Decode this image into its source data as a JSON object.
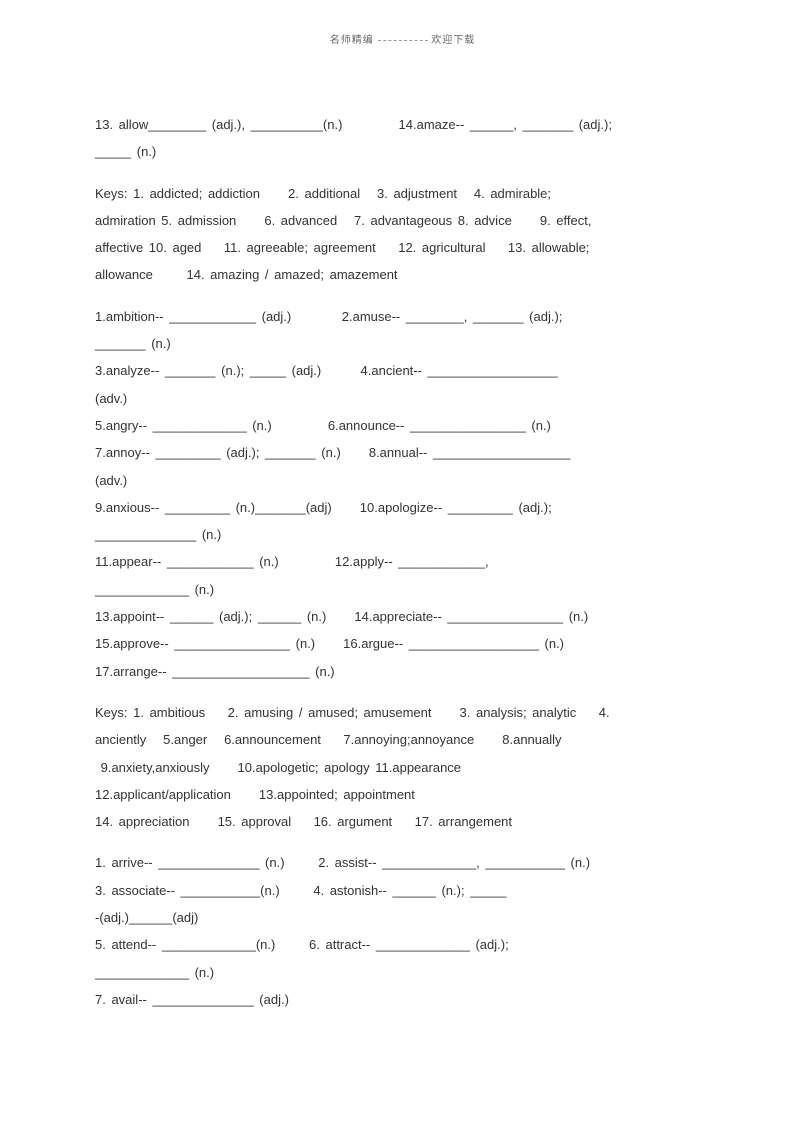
{
  "header": {
    "left": "名师精编",
    "right": "欢迎下载"
  },
  "lines": [
    "13. allow________ (adj.), __________(n.)          14.amaze-- ______, _______ (adj.);",
    "_____ (n.)",
    "",
    "Keys: 1. addicted; addiction     2. additional   3. adjustment   4. admirable;",
    "admiration 5. admission     6. advanced   7. advantageous 8. advice     9. effect,",
    "affective 10. aged    11. agreeable; agreement    12. agricultural    13. allowable;",
    "allowance      14. amazing / amazed; amazement",
    "",
    "1.ambition-- ____________ (adj.)         2.amuse-- ________, _______ (adj.);",
    "_______ (n.)",
    "3.analyze-- _______ (n.); _____ (adj.)       4.ancient-- __________________",
    "(adv.)",
    "5.angry-- _____________ (n.)          6.announce-- ________________ (n.)",
    "7.annoy-- _________ (adj.); _______ (n.)     8.annual-- ___________________",
    "(adv.)",
    "9.anxious-- _________ (n.)_______(adj)     10.apologize-- _________ (adj.);",
    "______________ (n.)",
    "11.appear-- ____________ (n.)          12.apply-- ____________,",
    "_____________ (n.)",
    "13.appoint-- ______ (adj.); ______ (n.)     14.appreciate-- ________________ (n.)",
    "15.approve-- ________________ (n.)     16.argue-- __________________ (n.)",
    "17.arrange-- ___________________ (n.)",
    "",
    "Keys: 1. ambitious    2. amusing / amused; amusement     3. analysis; analytic    4.",
    "anciently   5.anger   6.announcement    7.annoying;annoyance     8.annually",
    " 9.anxiety,anxiously     10.apologetic; apology 11.appearance",
    "12.applicant/application     13.appointed; appointment",
    "14. appreciation     15. approval    16. argument    17. arrangement",
    "",
    "1. arrive-- ______________ (n.)      2. assist-- _____________, ___________ (n.)",
    "3. associate-- ___________(n.)      4. astonish-- ______ (n.); _____",
    "-(adj.)______(adj)",
    "5. attend-- _____________(n.)      6. attract-- _____________ (adj.);",
    "_____________ (n.)",
    "7. avail-- ______________ (adj.)"
  ],
  "colors": {
    "text": "#333333",
    "header": "#666666",
    "background": "#ffffff"
  },
  "fontsize": 13,
  "line_height": 2.1
}
